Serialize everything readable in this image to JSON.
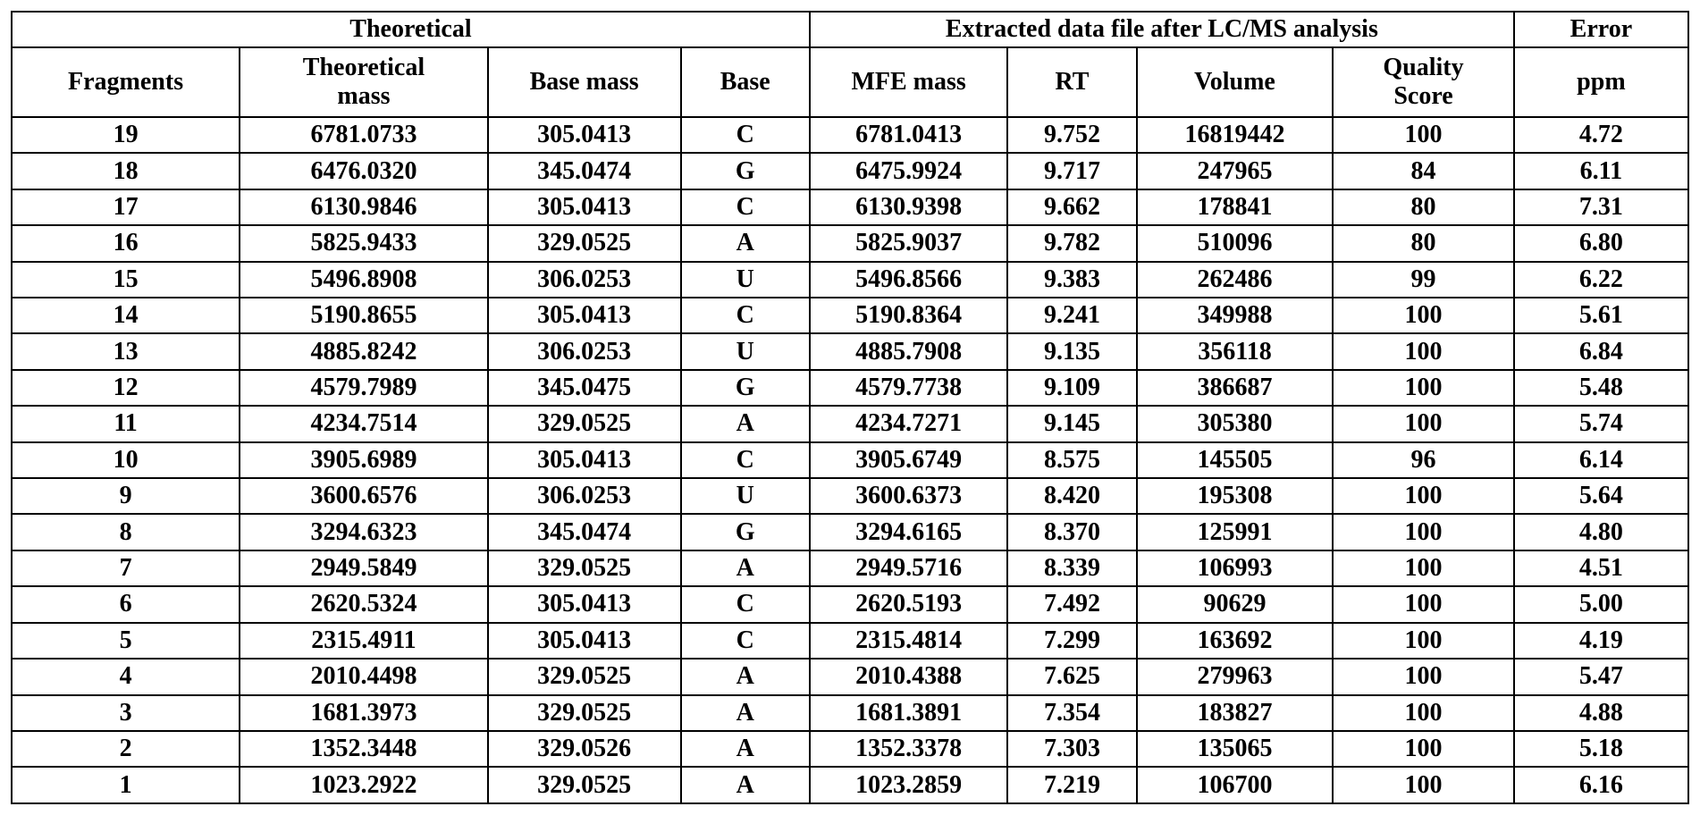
{
  "table": {
    "group_headers": {
      "theoretical": "Theoretical",
      "extracted": "Extracted data file after LC/MS analysis",
      "error": "Error"
    },
    "column_headers": {
      "fragments": "Fragments",
      "theoretical_mass_line1": "Theoretical",
      "theoretical_mass_line2": "mass",
      "base_mass": "Base mass",
      "base": "Base",
      "mfe_mass": "MFE mass",
      "rt": "RT",
      "volume": "Volume",
      "quality_score_line1": "Quality",
      "quality_score_line2": "Score",
      "ppm": "ppm"
    },
    "rows": [
      {
        "fragment": "19",
        "theoretical_mass": "6781.0733",
        "base_mass": "305.0413",
        "base": "C",
        "mfe_mass": "6781.0413",
        "rt": "9.752",
        "volume": "16819442",
        "quality_score": "100",
        "ppm": "4.72"
      },
      {
        "fragment": "18",
        "theoretical_mass": "6476.0320",
        "base_mass": "345.0474",
        "base": "G",
        "mfe_mass": "6475.9924",
        "rt": "9.717",
        "volume": "247965",
        "quality_score": "84",
        "ppm": "6.11"
      },
      {
        "fragment": "17",
        "theoretical_mass": "6130.9846",
        "base_mass": "305.0413",
        "base": "C",
        "mfe_mass": "6130.9398",
        "rt": "9.662",
        "volume": "178841",
        "quality_score": "80",
        "ppm": "7.31"
      },
      {
        "fragment": "16",
        "theoretical_mass": "5825.9433",
        "base_mass": "329.0525",
        "base": "A",
        "mfe_mass": "5825.9037",
        "rt": "9.782",
        "volume": "510096",
        "quality_score": "80",
        "ppm": "6.80"
      },
      {
        "fragment": "15",
        "theoretical_mass": "5496.8908",
        "base_mass": "306.0253",
        "base": "U",
        "mfe_mass": "5496.8566",
        "rt": "9.383",
        "volume": "262486",
        "quality_score": "99",
        "ppm": "6.22"
      },
      {
        "fragment": "14",
        "theoretical_mass": "5190.8655",
        "base_mass": "305.0413",
        "base": "C",
        "mfe_mass": "5190.8364",
        "rt": "9.241",
        "volume": "349988",
        "quality_score": "100",
        "ppm": "5.61"
      },
      {
        "fragment": "13",
        "theoretical_mass": "4885.8242",
        "base_mass": "306.0253",
        "base": "U",
        "mfe_mass": "4885.7908",
        "rt": "9.135",
        "volume": "356118",
        "quality_score": "100",
        "ppm": "6.84"
      },
      {
        "fragment": "12",
        "theoretical_mass": "4579.7989",
        "base_mass": "345.0475",
        "base": "G",
        "mfe_mass": "4579.7738",
        "rt": "9.109",
        "volume": "386687",
        "quality_score": "100",
        "ppm": "5.48"
      },
      {
        "fragment": "11",
        "theoretical_mass": "4234.7514",
        "base_mass": "329.0525",
        "base": "A",
        "mfe_mass": "4234.7271",
        "rt": "9.145",
        "volume": "305380",
        "quality_score": "100",
        "ppm": "5.74"
      },
      {
        "fragment": "10",
        "theoretical_mass": "3905.6989",
        "base_mass": "305.0413",
        "base": "C",
        "mfe_mass": "3905.6749",
        "rt": "8.575",
        "volume": "145505",
        "quality_score": "96",
        "ppm": "6.14"
      },
      {
        "fragment": "9",
        "theoretical_mass": "3600.6576",
        "base_mass": "306.0253",
        "base": "U",
        "mfe_mass": "3600.6373",
        "rt": "8.420",
        "volume": "195308",
        "quality_score": "100",
        "ppm": "5.64"
      },
      {
        "fragment": "8",
        "theoretical_mass": "3294.6323",
        "base_mass": "345.0474",
        "base": "G",
        "mfe_mass": "3294.6165",
        "rt": "8.370",
        "volume": "125991",
        "quality_score": "100",
        "ppm": "4.80"
      },
      {
        "fragment": "7",
        "theoretical_mass": "2949.5849",
        "base_mass": "329.0525",
        "base": "A",
        "mfe_mass": "2949.5716",
        "rt": "8.339",
        "volume": "106993",
        "quality_score": "100",
        "ppm": "4.51"
      },
      {
        "fragment": "6",
        "theoretical_mass": "2620.5324",
        "base_mass": "305.0413",
        "base": "C",
        "mfe_mass": "2620.5193",
        "rt": "7.492",
        "volume": "90629",
        "quality_score": "100",
        "ppm": "5.00"
      },
      {
        "fragment": "5",
        "theoretical_mass": "2315.4911",
        "base_mass": "305.0413",
        "base": "C",
        "mfe_mass": "2315.4814",
        "rt": "7.299",
        "volume": "163692",
        "quality_score": "100",
        "ppm": "4.19"
      },
      {
        "fragment": "4",
        "theoretical_mass": "2010.4498",
        "base_mass": "329.0525",
        "base": "A",
        "mfe_mass": "2010.4388",
        "rt": "7.625",
        "volume": "279963",
        "quality_score": "100",
        "ppm": "5.47"
      },
      {
        "fragment": "3",
        "theoretical_mass": "1681.3973",
        "base_mass": "329.0525",
        "base": "A",
        "mfe_mass": "1681.3891",
        "rt": "7.354",
        "volume": "183827",
        "quality_score": "100",
        "ppm": "4.88"
      },
      {
        "fragment": "2",
        "theoretical_mass": "1352.3448",
        "base_mass": "329.0526",
        "base": "A",
        "mfe_mass": "1352.3378",
        "rt": "7.303",
        "volume": "135065",
        "quality_score": "100",
        "ppm": "5.18"
      },
      {
        "fragment": "1",
        "theoretical_mass": "1023.2922",
        "base_mass": "329.0525",
        "base": "A",
        "mfe_mass": "1023.2859",
        "rt": "7.219",
        "volume": "106700",
        "quality_score": "100",
        "ppm": "6.16"
      }
    ]
  }
}
